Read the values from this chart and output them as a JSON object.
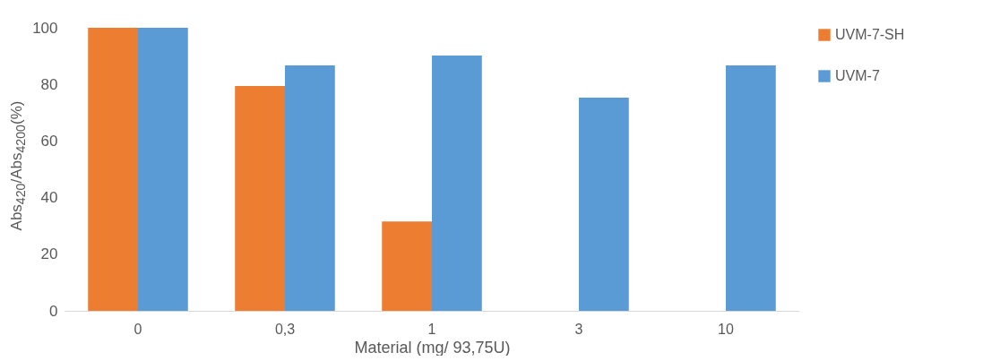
{
  "chart_data": {
    "type": "bar",
    "xlabel": "Material (mg/ 93,75U)",
    "ylabel": "Abs$_{420}$/Abs$_{4200}$(%)",
    "categories": [
      "0",
      "0,3",
      "1",
      "3",
      "10"
    ],
    "series": [
      {
        "name": "UVM-7-SH",
        "color": "#ed7d31",
        "values": [
          100,
          79.4,
          31.6,
          null,
          null
        ]
      },
      {
        "name": "UVM-7",
        "color": "#5b9bd5",
        "values": [
          100,
          86.7,
          90.2,
          75.3,
          86.7
        ]
      }
    ],
    "ylim": [
      0,
      100
    ],
    "yticks": [
      0,
      20,
      40,
      60,
      80,
      100
    ],
    "grid": false,
    "legend": "right"
  }
}
